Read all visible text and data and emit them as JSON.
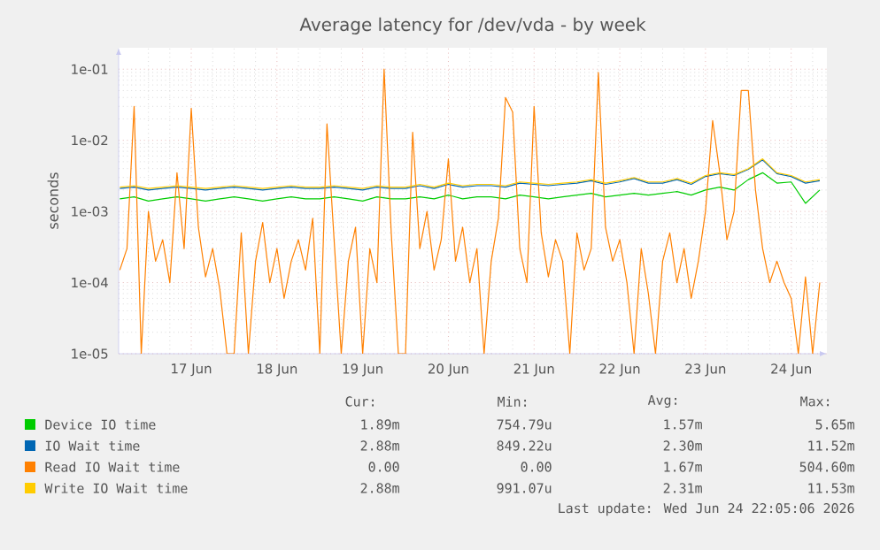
{
  "chart_data": {
    "type": "line",
    "title": "Average latency for /dev/vda - by week",
    "ylabel": "seconds",
    "log": "y",
    "grid": true,
    "legend": "bottom",
    "xlim": [
      "2026-06-16T15:40",
      "2026-06-24T22:00"
    ],
    "xticks": [
      {
        "value": "2026-06-17T12:00",
        "label": "17 Jun"
      },
      {
        "value": "2026-06-18T12:00",
        "label": "18 Jun"
      },
      {
        "value": "2026-06-19T12:00",
        "label": "19 Jun"
      },
      {
        "value": "2026-06-20T12:00",
        "label": "20 Jun"
      },
      {
        "value": "2026-06-21T12:00",
        "label": "21 Jun"
      },
      {
        "value": "2026-06-22T12:00",
        "label": "22 Jun"
      },
      {
        "value": "2026-06-23T12:00",
        "label": "23 Jun"
      },
      {
        "value": "2026-06-24T12:00",
        "label": "24 Jun"
      }
    ],
    "ylim": [
      1e-05,
      0.2
    ],
    "yticks": [
      {
        "value": 1e-05,
        "label": "1e-05"
      },
      {
        "value": 0.0001,
        "label": "1e-04"
      },
      {
        "value": 0.001,
        "label": "1e-03"
      },
      {
        "value": 0.01,
        "label": "1e-02"
      },
      {
        "value": 0.1,
        "label": "1e-01"
      }
    ],
    "x": [
      "2026-06-16T16:00",
      "2026-06-16T18:00",
      "2026-06-16T20:00",
      "2026-06-16T22:00",
      "2026-06-17T00:00",
      "2026-06-17T02:00",
      "2026-06-17T04:00",
      "2026-06-17T06:00",
      "2026-06-17T08:00",
      "2026-06-17T10:00",
      "2026-06-17T12:00",
      "2026-06-17T14:00",
      "2026-06-17T16:00",
      "2026-06-17T18:00",
      "2026-06-17T20:00",
      "2026-06-17T22:00",
      "2026-06-18T00:00",
      "2026-06-18T02:00",
      "2026-06-18T04:00",
      "2026-06-18T06:00",
      "2026-06-18T08:00",
      "2026-06-18T10:00",
      "2026-06-18T12:00",
      "2026-06-18T14:00",
      "2026-06-18T16:00",
      "2026-06-18T18:00",
      "2026-06-18T20:00",
      "2026-06-18T22:00",
      "2026-06-19T00:00",
      "2026-06-19T02:00",
      "2026-06-19T04:00",
      "2026-06-19T06:00",
      "2026-06-19T08:00",
      "2026-06-19T10:00",
      "2026-06-19T12:00",
      "2026-06-19T14:00",
      "2026-06-19T16:00",
      "2026-06-19T18:00",
      "2026-06-19T20:00",
      "2026-06-19T22:00",
      "2026-06-20T00:00",
      "2026-06-20T02:00",
      "2026-06-20T04:00",
      "2026-06-20T06:00",
      "2026-06-20T08:00",
      "2026-06-20T10:00",
      "2026-06-20T12:00",
      "2026-06-20T14:00",
      "2026-06-20T16:00",
      "2026-06-20T18:00",
      "2026-06-20T20:00",
      "2026-06-20T22:00",
      "2026-06-21T00:00",
      "2026-06-21T02:00",
      "2026-06-21T04:00",
      "2026-06-21T06:00",
      "2026-06-21T08:00",
      "2026-06-21T10:00",
      "2026-06-21T12:00",
      "2026-06-21T14:00",
      "2026-06-21T16:00",
      "2026-06-21T18:00",
      "2026-06-21T20:00",
      "2026-06-21T22:00",
      "2026-06-22T00:00",
      "2026-06-22T02:00",
      "2026-06-22T04:00",
      "2026-06-22T06:00",
      "2026-06-22T08:00",
      "2026-06-22T10:00",
      "2026-06-22T12:00",
      "2026-06-22T14:00",
      "2026-06-22T16:00",
      "2026-06-22T18:00",
      "2026-06-22T20:00",
      "2026-06-22T22:00",
      "2026-06-23T00:00",
      "2026-06-23T02:00",
      "2026-06-23T04:00",
      "2026-06-23T06:00",
      "2026-06-23T08:00",
      "2026-06-23T10:00",
      "2026-06-23T12:00",
      "2026-06-23T14:00",
      "2026-06-23T16:00",
      "2026-06-23T18:00",
      "2026-06-23T20:00",
      "2026-06-23T22:00",
      "2026-06-24T00:00",
      "2026-06-24T02:00",
      "2026-06-24T04:00",
      "2026-06-24T06:00",
      "2026-06-24T08:00",
      "2026-06-24T10:00",
      "2026-06-24T12:00",
      "2026-06-24T14:00",
      "2026-06-24T16:00",
      "2026-06-24T18:00",
      "2026-06-24T20:00"
    ],
    "series": [
      {
        "name": "Device IO time",
        "color": "#00cc00",
        "x": [
          "2026-06-16T16:00",
          "2026-06-16T20:00",
          "2026-06-17T00:00",
          "2026-06-17T04:00",
          "2026-06-17T08:00",
          "2026-06-17T12:00",
          "2026-06-17T16:00",
          "2026-06-17T20:00",
          "2026-06-18T00:00",
          "2026-06-18T04:00",
          "2026-06-18T08:00",
          "2026-06-18T12:00",
          "2026-06-18T16:00",
          "2026-06-18T20:00",
          "2026-06-19T00:00",
          "2026-06-19T04:00",
          "2026-06-19T08:00",
          "2026-06-19T12:00",
          "2026-06-19T16:00",
          "2026-06-19T20:00",
          "2026-06-20T00:00",
          "2026-06-20T04:00",
          "2026-06-20T08:00",
          "2026-06-20T12:00",
          "2026-06-20T16:00",
          "2026-06-20T20:00",
          "2026-06-21T00:00",
          "2026-06-21T04:00",
          "2026-06-21T08:00",
          "2026-06-21T12:00",
          "2026-06-21T16:00",
          "2026-06-21T20:00",
          "2026-06-22T00:00",
          "2026-06-22T04:00",
          "2026-06-22T08:00",
          "2026-06-22T12:00",
          "2026-06-22T16:00",
          "2026-06-22T20:00",
          "2026-06-23T00:00",
          "2026-06-23T04:00",
          "2026-06-23T08:00",
          "2026-06-23T12:00",
          "2026-06-23T16:00",
          "2026-06-23T20:00",
          "2026-06-24T00:00",
          "2026-06-24T04:00",
          "2026-06-24T08:00",
          "2026-06-24T12:00",
          "2026-06-24T16:00",
          "2026-06-24T20:00"
        ],
        "values": [
          0.0015,
          0.0016,
          0.0014,
          0.0015,
          0.0016,
          0.0015,
          0.0014,
          0.0015,
          0.0016,
          0.0015,
          0.0014,
          0.0015,
          0.0016,
          0.0015,
          0.0015,
          0.0016,
          0.0015,
          0.0014,
          0.0016,
          0.0015,
          0.0015,
          0.0016,
          0.0015,
          0.0017,
          0.0015,
          0.0016,
          0.0016,
          0.0015,
          0.0017,
          0.0016,
          0.0015,
          0.0016,
          0.0017,
          0.0018,
          0.0016,
          0.0017,
          0.0018,
          0.0017,
          0.0018,
          0.0019,
          0.0017,
          0.002,
          0.0022,
          0.002,
          0.0028,
          0.0035,
          0.0025,
          0.0026,
          0.0013,
          0.002
        ]
      },
      {
        "name": "IO Wait time",
        "color": "#0066b3",
        "x": [
          "2026-06-16T16:00",
          "2026-06-16T20:00",
          "2026-06-17T00:00",
          "2026-06-17T04:00",
          "2026-06-17T08:00",
          "2026-06-17T12:00",
          "2026-06-17T16:00",
          "2026-06-17T20:00",
          "2026-06-18T00:00",
          "2026-06-18T04:00",
          "2026-06-18T08:00",
          "2026-06-18T12:00",
          "2026-06-18T16:00",
          "2026-06-18T20:00",
          "2026-06-19T00:00",
          "2026-06-19T04:00",
          "2026-06-19T08:00",
          "2026-06-19T12:00",
          "2026-06-19T16:00",
          "2026-06-19T20:00",
          "2026-06-20T00:00",
          "2026-06-20T04:00",
          "2026-06-20T08:00",
          "2026-06-20T12:00",
          "2026-06-20T16:00",
          "2026-06-20T20:00",
          "2026-06-21T00:00",
          "2026-06-21T04:00",
          "2026-06-21T08:00",
          "2026-06-21T12:00",
          "2026-06-21T16:00",
          "2026-06-21T20:00",
          "2026-06-22T00:00",
          "2026-06-22T04:00",
          "2026-06-22T08:00",
          "2026-06-22T12:00",
          "2026-06-22T16:00",
          "2026-06-22T20:00",
          "2026-06-23T00:00",
          "2026-06-23T04:00",
          "2026-06-23T08:00",
          "2026-06-23T12:00",
          "2026-06-23T16:00",
          "2026-06-23T20:00",
          "2026-06-24T00:00",
          "2026-06-24T04:00",
          "2026-06-24T08:00",
          "2026-06-24T12:00",
          "2026-06-24T16:00",
          "2026-06-24T20:00"
        ],
        "values": [
          0.0021,
          0.0022,
          0.002,
          0.0021,
          0.0022,
          0.0021,
          0.002,
          0.0021,
          0.0022,
          0.0021,
          0.002,
          0.0021,
          0.0022,
          0.0021,
          0.0021,
          0.0022,
          0.0021,
          0.002,
          0.0022,
          0.0021,
          0.0021,
          0.0023,
          0.0021,
          0.0024,
          0.0022,
          0.0023,
          0.0023,
          0.0022,
          0.0025,
          0.0024,
          0.0023,
          0.0024,
          0.0025,
          0.0027,
          0.0024,
          0.0026,
          0.0029,
          0.0025,
          0.0025,
          0.0028,
          0.0024,
          0.0031,
          0.0034,
          0.0032,
          0.0039,
          0.0053,
          0.0034,
          0.0031,
          0.0025,
          0.0027
        ]
      },
      {
        "name": "Read IO Wait time",
        "color": "#ff8000",
        "values": [
          0.00015,
          0.0003,
          0.03,
          1e-05,
          0.001,
          0.0002,
          0.0004,
          0.0001,
          0.0035,
          0.0003,
          0.028,
          0.0006,
          0.00012,
          0.0003,
          8e-05,
          1e-05,
          1e-05,
          0.0005,
          1e-05,
          0.0002,
          0.0007,
          0.0001,
          0.0003,
          6e-05,
          0.0002,
          0.0004,
          0.00015,
          0.0008,
          1e-05,
          0.017,
          0.0004,
          1e-05,
          0.0002,
          0.0006,
          1e-05,
          0.0003,
          0.0001,
          0.1,
          0.0005,
          1e-05,
          1e-05,
          0.013,
          0.0003,
          0.001,
          0.00015,
          0.0004,
          0.0055,
          0.0002,
          0.0006,
          0.0001,
          0.0003,
          1e-05,
          0.0002,
          0.0008,
          0.04,
          0.025,
          0.0003,
          0.0001,
          0.03,
          0.0005,
          0.00012,
          0.0004,
          0.0002,
          1e-05,
          0.0005,
          0.00015,
          0.0003,
          0.09,
          0.0006,
          0.0002,
          0.0004,
          0.0001,
          1e-05,
          0.0003,
          7e-05,
          1e-05,
          0.0002,
          0.0005,
          0.0001,
          0.0003,
          6e-05,
          0.0002,
          0.001,
          0.019,
          0.0035,
          0.0004,
          0.001,
          0.05,
          0.05,
          0.002,
          0.0003,
          0.0001,
          0.0002,
          0.0001,
          6e-05,
          1e-05,
          0.00012,
          1e-05,
          0.0001
        ]
      },
      {
        "name": "Write IO Wait time",
        "color": "#ffcc00",
        "x": [
          "2026-06-16T16:00",
          "2026-06-16T20:00",
          "2026-06-17T00:00",
          "2026-06-17T04:00",
          "2026-06-17T08:00",
          "2026-06-17T12:00",
          "2026-06-17T16:00",
          "2026-06-17T20:00",
          "2026-06-18T00:00",
          "2026-06-18T04:00",
          "2026-06-18T08:00",
          "2026-06-18T12:00",
          "2026-06-18T16:00",
          "2026-06-18T20:00",
          "2026-06-19T00:00",
          "2026-06-19T04:00",
          "2026-06-19T08:00",
          "2026-06-19T12:00",
          "2026-06-19T16:00",
          "2026-06-19T20:00",
          "2026-06-20T00:00",
          "2026-06-20T04:00",
          "2026-06-20T08:00",
          "2026-06-20T12:00",
          "2026-06-20T16:00",
          "2026-06-20T20:00",
          "2026-06-21T00:00",
          "2026-06-21T04:00",
          "2026-06-21T08:00",
          "2026-06-21T12:00",
          "2026-06-21T16:00",
          "2026-06-21T20:00",
          "2026-06-22T00:00",
          "2026-06-22T04:00",
          "2026-06-22T08:00",
          "2026-06-22T12:00",
          "2026-06-22T16:00",
          "2026-06-22T20:00",
          "2026-06-23T00:00",
          "2026-06-23T04:00",
          "2026-06-23T08:00",
          "2026-06-23T12:00",
          "2026-06-23T16:00",
          "2026-06-23T20:00",
          "2026-06-24T00:00",
          "2026-06-24T04:00",
          "2026-06-24T08:00",
          "2026-06-24T12:00",
          "2026-06-24T16:00",
          "2026-06-24T20:00"
        ],
        "values": [
          0.0022,
          0.0023,
          0.0021,
          0.0022,
          0.0023,
          0.0022,
          0.0021,
          0.0022,
          0.0023,
          0.0022,
          0.0021,
          0.0022,
          0.0023,
          0.0022,
          0.0022,
          0.0023,
          0.0022,
          0.0021,
          0.0023,
          0.0022,
          0.0022,
          0.0024,
          0.0022,
          0.0025,
          0.0023,
          0.0024,
          0.0024,
          0.0023,
          0.0026,
          0.0025,
          0.0024,
          0.0025,
          0.0026,
          0.0028,
          0.0025,
          0.0027,
          0.003,
          0.0026,
          0.0026,
          0.0029,
          0.0025,
          0.0032,
          0.0035,
          0.0033,
          0.004,
          0.0055,
          0.0035,
          0.0032,
          0.0026,
          0.0028
        ]
      }
    ],
    "annotations": [
      "Cur:",
      "Min:",
      "Avg:",
      "Max:",
      "1.89m",
      "754.79u",
      "1.57m",
      "5.65m",
      "2.88m",
      "849.22u",
      "2.30m",
      "11.52m",
      "0.00",
      "0.00",
      "1.67m",
      "504.60m",
      "2.88m",
      "991.07u",
      "2.31m",
      "11.53m",
      "Last update: Wed Jun 24 22:05:06 2026"
    ]
  }
}
